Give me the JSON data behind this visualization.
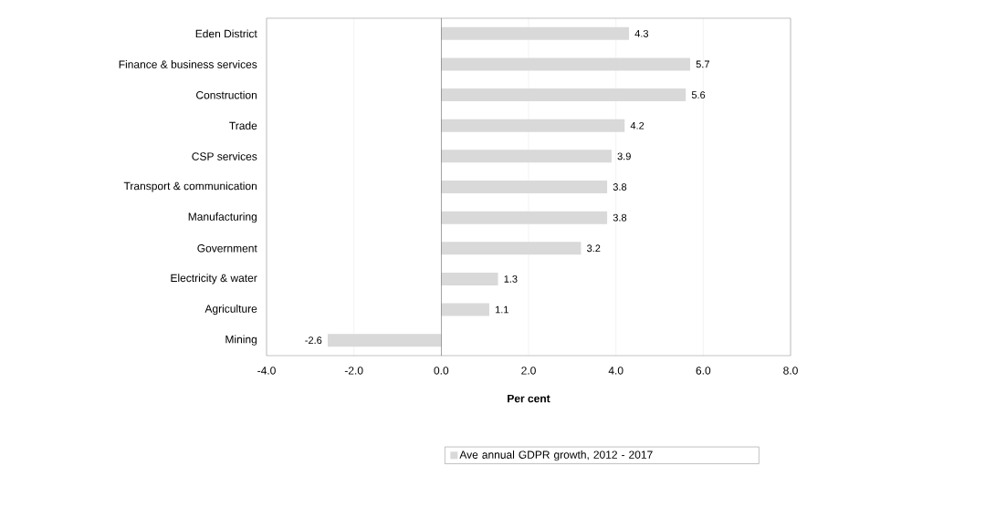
{
  "chart_data": {
    "type": "bar",
    "orientation": "horizontal",
    "xlabel": "Per cent",
    "categories": [
      "Eden District",
      "Finance & business services",
      "Construction",
      "Trade",
      "CSP services",
      "Transport & communication",
      "Manufacturing",
      "Government",
      "Electricity & water",
      "Agriculture",
      "Mining"
    ],
    "series": [
      {
        "name": "Ave annual GDPR growth, 2012 - 2017",
        "color": "#d9d9d9",
        "values": [
          4.3,
          5.7,
          5.6,
          4.2,
          3.9,
          3.8,
          3.8,
          3.2,
          1.3,
          1.1,
          -2.6
        ]
      }
    ],
    "data_labels": true,
    "xlim": [
      -4,
      8
    ],
    "xticks": [
      {
        "value": -4,
        "label": "-4.0"
      },
      {
        "value": -2,
        "label": "-2.0"
      },
      {
        "value": 0,
        "label": "0.0"
      },
      {
        "value": 2,
        "label": "2.0"
      },
      {
        "value": 4,
        "label": "4.0"
      },
      {
        "value": 6,
        "label": "6.0"
      },
      {
        "value": 8,
        "label": "8.0"
      }
    ],
    "grid": "x",
    "legend": "bottom"
  }
}
